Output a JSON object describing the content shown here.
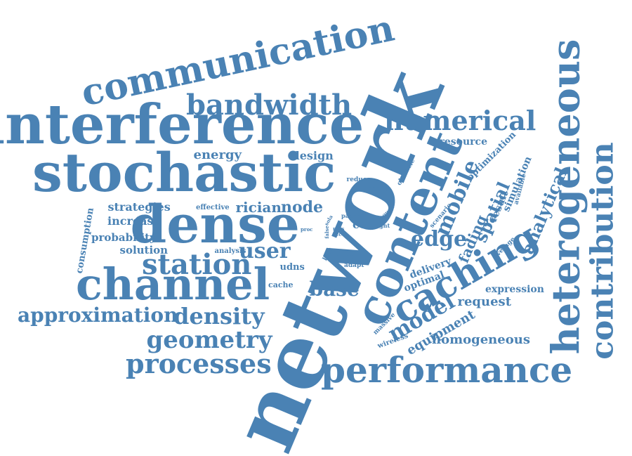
{
  "color": "#4a82b4",
  "words": [
    {
      "text": "network",
      "name": "word-network"
    },
    {
      "text": "content",
      "name": "word-content"
    },
    {
      "text": "interference",
      "name": "word-interference"
    },
    {
      "text": "stochastic",
      "name": "word-stochastic"
    },
    {
      "text": "communication",
      "name": "word-communication"
    },
    {
      "text": "heterogeneous",
      "name": "word-heterogeneous"
    },
    {
      "text": "caching",
      "name": "word-caching"
    },
    {
      "text": "dense",
      "name": "word-dense"
    },
    {
      "text": "channel",
      "name": "word-channel"
    },
    {
      "text": "performance",
      "name": "word-performance"
    },
    {
      "text": "contribution",
      "name": "word-contribution"
    },
    {
      "text": "bandwidth",
      "name": "word-bandwidth"
    },
    {
      "text": "numerical",
      "name": "word-numerical"
    },
    {
      "text": "station",
      "name": "word-station"
    },
    {
      "text": "processes",
      "name": "word-processes"
    },
    {
      "text": "geometry",
      "name": "word-geometry"
    },
    {
      "text": "density",
      "name": "word-density"
    },
    {
      "text": "approximation",
      "name": "word-approximation"
    },
    {
      "text": "user",
      "name": "word-user"
    },
    {
      "text": "base",
      "name": "word-base"
    },
    {
      "text": "model",
      "name": "word-model"
    },
    {
      "text": "mobile",
      "name": "word-mobile"
    },
    {
      "text": "edge",
      "name": "word-edge"
    },
    {
      "text": "spatial",
      "name": "word-spatial"
    },
    {
      "text": "analytical",
      "name": "word-analytical"
    },
    {
      "text": "fading",
      "name": "word-fading"
    },
    {
      "text": "request",
      "name": "word-request"
    },
    {
      "text": "equipment",
      "name": "word-equipment"
    },
    {
      "text": "homogeneous",
      "name": "word-homogeneous"
    },
    {
      "text": "energy",
      "name": "word-energy"
    },
    {
      "text": "design",
      "name": "word-design"
    },
    {
      "text": "strategies",
      "name": "word-strategies"
    },
    {
      "text": "increase",
      "name": "word-increase"
    },
    {
      "text": "probability",
      "name": "word-probability"
    },
    {
      "text": "solution",
      "name": "word-solution"
    },
    {
      "text": "rician",
      "name": "word-rician"
    },
    {
      "text": "node",
      "name": "word-node"
    },
    {
      "text": "resource",
      "name": "word-resource"
    },
    {
      "text": "optimization",
      "name": "word-optimization"
    },
    {
      "text": "simulation",
      "name": "word-simulation"
    },
    {
      "text": "result",
      "name": "word-result"
    },
    {
      "text": "delivery",
      "name": "word-delivery"
    },
    {
      "text": "optimal",
      "name": "word-optimal"
    },
    {
      "text": "expression",
      "name": "word-expression"
    },
    {
      "text": "consumption",
      "name": "word-consumption"
    },
    {
      "text": "cell",
      "name": "word-cell"
    },
    {
      "text": "more",
      "name": "word-more"
    },
    {
      "text": "udns",
      "name": "word-udns"
    },
    {
      "text": "cache",
      "name": "word-cache"
    },
    {
      "text": "analysis",
      "name": "word-analysis"
    },
    {
      "text": "effective",
      "name": "word-effective"
    },
    {
      "text": "thesis",
      "name": "word-thesis"
    },
    {
      "text": "reduce",
      "name": "word-reduce"
    },
    {
      "text": "obstacle",
      "name": "word-obstacle"
    },
    {
      "text": "scenario",
      "name": "word-scenario"
    },
    {
      "text": "available",
      "name": "word-available"
    },
    {
      "text": "average",
      "name": "word-average"
    },
    {
      "text": "massive",
      "name": "word-massive"
    },
    {
      "text": "wireless",
      "name": "word-wireless"
    },
    {
      "text": "link",
      "name": "word-link"
    },
    {
      "text": "adapt",
      "name": "word-adapt"
    },
    {
      "text": "paper",
      "name": "word-paper"
    },
    {
      "text": "power",
      "name": "word-power"
    },
    {
      "text": "sight",
      "name": "word-sight"
    },
    {
      "text": "proc",
      "name": "word-proc"
    },
    {
      "text": "sola",
      "name": "word-sola"
    },
    {
      "text": "false",
      "name": "word-false"
    },
    {
      "text": "nlos",
      "name": "word-nlos"
    },
    {
      "text": "acc",
      "name": "word-acc"
    }
  ]
}
